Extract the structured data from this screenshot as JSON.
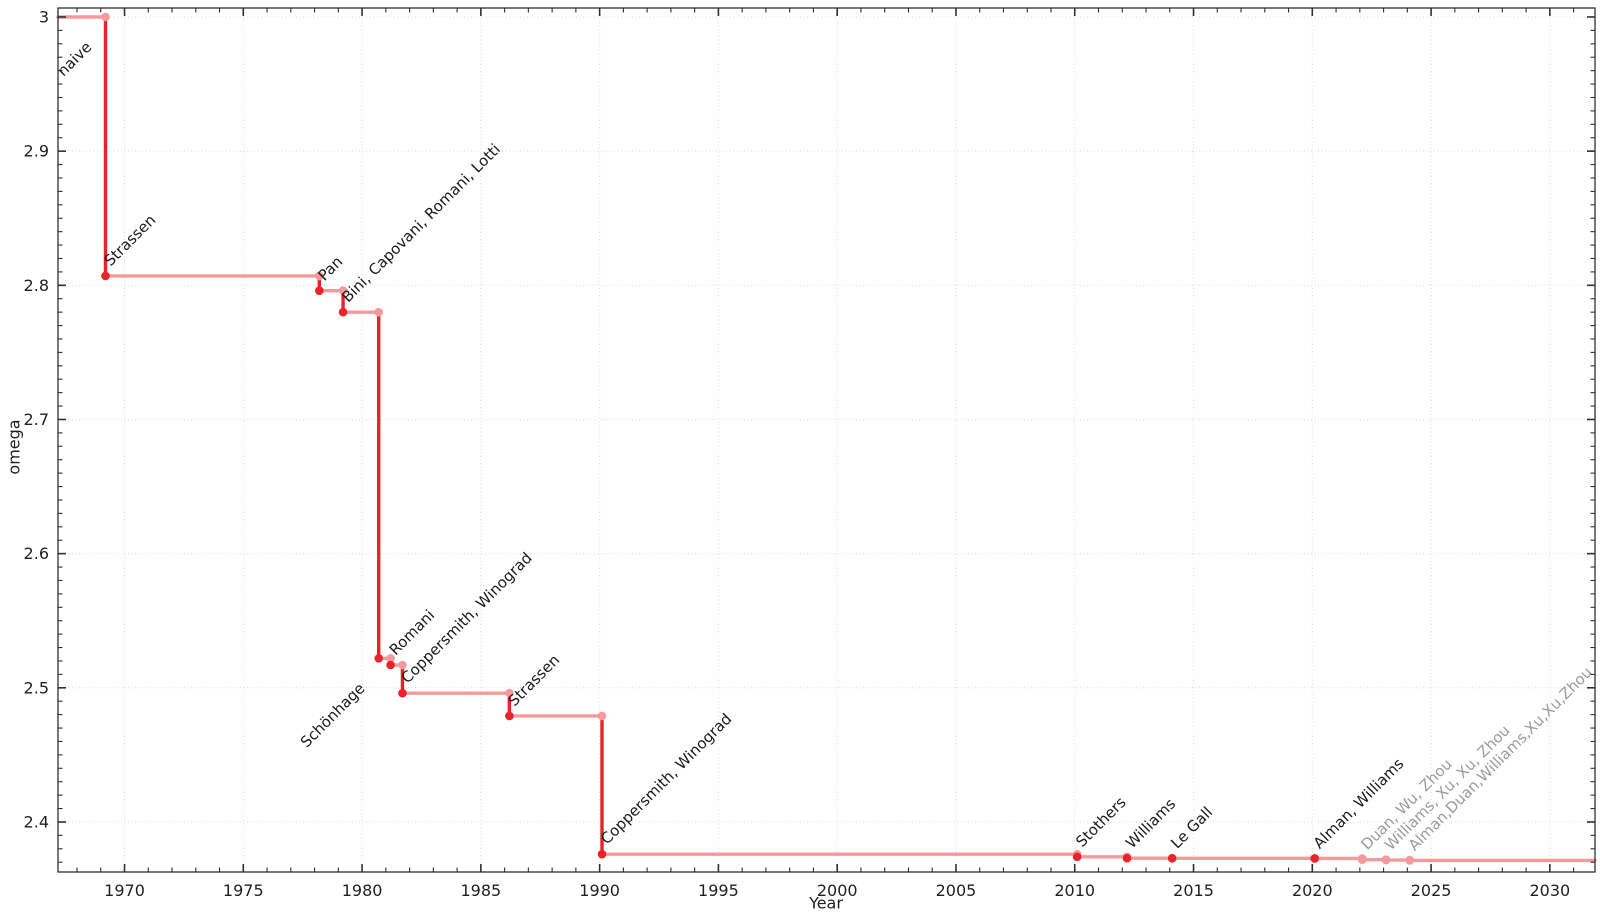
{
  "chart_data": {
    "type": "line",
    "subtype": "step",
    "title": "",
    "xlabel": "Year",
    "ylabel": "omega",
    "grid": "dotted",
    "legend": "none",
    "xlim": [
      1967.2,
      2031.9
    ],
    "ylim": [
      2.3627,
      3.0067
    ],
    "x_ticks": [
      {
        "v": 1970,
        "label": "1970"
      },
      {
        "v": 1975,
        "label": "1975"
      },
      {
        "v": 1980,
        "label": "1980"
      },
      {
        "v": 1985,
        "label": "1985"
      },
      {
        "v": 1990,
        "label": "1990"
      },
      {
        "v": 1995,
        "label": "1995"
      },
      {
        "v": 2000,
        "label": "2000"
      },
      {
        "v": 2005,
        "label": "2005"
      },
      {
        "v": 2010,
        "label": "2010"
      },
      {
        "v": 2015,
        "label": "2015"
      },
      {
        "v": 2020,
        "label": "2020"
      },
      {
        "v": 2025,
        "label": "2025"
      },
      {
        "v": 2030,
        "label": "2030"
      }
    ],
    "y_ticks": [
      {
        "v": 3.0,
        "label": "3"
      },
      {
        "v": 2.9,
        "label": "2.9"
      },
      {
        "v": 2.8,
        "label": "2.8"
      },
      {
        "v": 2.7,
        "label": "2.7"
      },
      {
        "v": 2.6,
        "label": "2.6"
      },
      {
        "v": 2.5,
        "label": "2.5"
      },
      {
        "v": 2.4,
        "label": "2.4"
      }
    ],
    "x_minor_step": 1,
    "y_minor_step": 0.01,
    "initial": {
      "label": "naive",
      "omega": 3.0,
      "label_x": 1969.2,
      "label_placement": "below"
    },
    "points": [
      {
        "x": 1969.2,
        "omega": 2.807,
        "label": "Strassen",
        "provisional": false,
        "label_placement": "above"
      },
      {
        "x": 1978.2,
        "omega": 2.796,
        "label": "Pan",
        "provisional": false,
        "label_placement": "above"
      },
      {
        "x": 1979.2,
        "omega": 2.78,
        "label": "Bini, Capovani, Romani, Lotti",
        "provisional": false,
        "label_placement": "above"
      },
      {
        "x": 1980.7,
        "omega": 2.522,
        "label": "Schönhage",
        "provisional": false,
        "label_placement": "below"
      },
      {
        "x": 1981.2,
        "omega": 2.517,
        "label": "Romani",
        "provisional": false,
        "label_placement": "above"
      },
      {
        "x": 1981.7,
        "omega": 2.496,
        "label": "Coppersmith, Winograd",
        "provisional": false,
        "label_placement": "above"
      },
      {
        "x": 1986.2,
        "omega": 2.479,
        "label": "Strassen",
        "provisional": false,
        "label_placement": "above"
      },
      {
        "x": 1990.1,
        "omega": 2.376,
        "label": "Coppersmith, Winograd",
        "provisional": false,
        "label_placement": "above"
      },
      {
        "x": 2010.1,
        "omega": 2.374,
        "label": "Stothers",
        "provisional": false,
        "label_placement": "above"
      },
      {
        "x": 2012.2,
        "omega": 2.373,
        "label": "Williams",
        "provisional": false,
        "label_placement": "above"
      },
      {
        "x": 2014.1,
        "omega": 2.3729,
        "label": "Le Gall",
        "provisional": false,
        "label_placement": "above"
      },
      {
        "x": 2020.1,
        "omega": 2.3728,
        "label": "Alman, Williams",
        "provisional": false,
        "label_placement": "above"
      },
      {
        "x": 2022.1,
        "omega": 2.3719,
        "label": "Duan, Wu, Zhou",
        "provisional": true,
        "label_placement": "above"
      },
      {
        "x": 2023.1,
        "omega": 2.3716,
        "label": "Williams, Xu, Xu, Zhou",
        "provisional": true,
        "label_placement": "above"
      },
      {
        "x": 2024.1,
        "omega": 2.3713,
        "label": "Alman,Duan,Williams,Xu,Xu,Zhou",
        "provisional": true,
        "label_placement": "above"
      }
    ]
  },
  "style": {
    "background": "#ffffff",
    "line_color": "#e8232a",
    "record_color": "#f59a9c",
    "label_color": "#1a1a1a",
    "provisional_color": "#9a9a9a",
    "grid_color": "#d9d9d9",
    "axis_color": "#2f2f2f",
    "tick_label_color": "#1f1f1f"
  }
}
